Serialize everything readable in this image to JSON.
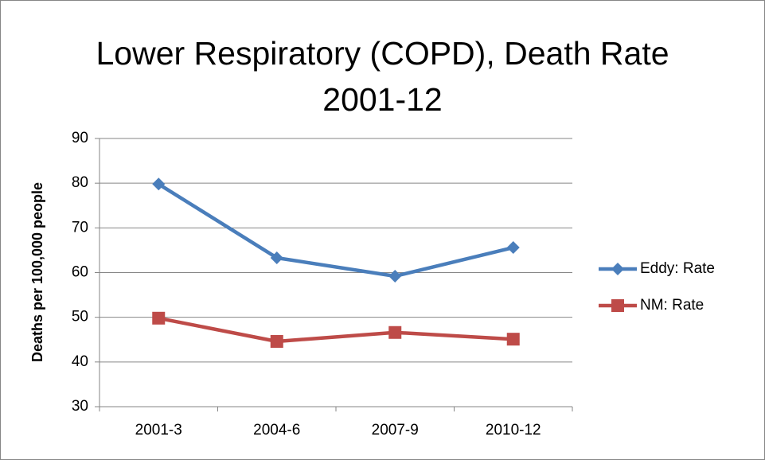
{
  "chart_data": {
    "type": "line",
    "title": "Lower Respiratory (COPD), Death Rate 2001-12",
    "y_label": "Deaths per 100,000 people",
    "categories": [
      "2001-3",
      "2004-6",
      "2007-9",
      "2010-12"
    ],
    "series": [
      {
        "name": "Eddy: Rate",
        "color": "#4a7ebb",
        "marker": "diamond",
        "values": [
          79.8,
          63.3,
          59.2,
          65.6
        ]
      },
      {
        "name": "NM: Rate",
        "color": "#be4b48",
        "marker": "square",
        "values": [
          49.8,
          44.6,
          46.6,
          45.1
        ]
      }
    ],
    "ylim": [
      30,
      90
    ],
    "yticks": [
      30,
      40,
      50,
      60,
      70,
      80,
      90
    ],
    "grid": true,
    "legend": "right"
  }
}
